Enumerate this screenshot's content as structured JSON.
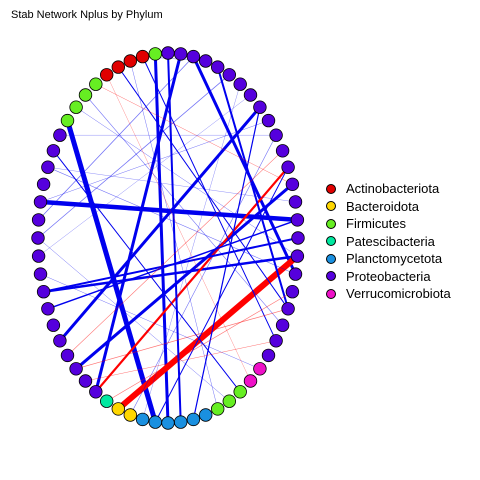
{
  "title": "Stab Network Nplus by Phylum",
  "colors": {
    "positive_edge": "#ff0000",
    "negative_edge": "#0000ee",
    "node_outline": "#000000"
  },
  "legend": [
    {
      "label": "Actinobacteriota",
      "color": "#e00000"
    },
    {
      "label": "Bacteroidota",
      "color": "#ffd700"
    },
    {
      "label": "Firmicutes",
      "color": "#66ee22"
    },
    {
      "label": "Patescibacteria",
      "color": "#00e8a0"
    },
    {
      "label": "Planctomycetota",
      "color": "#1a90e0"
    },
    {
      "label": "Proteobacteria",
      "color": "#5500dd"
    },
    {
      "label": "Verrucomicrobiota",
      "color": "#ee10c8"
    }
  ]
}
